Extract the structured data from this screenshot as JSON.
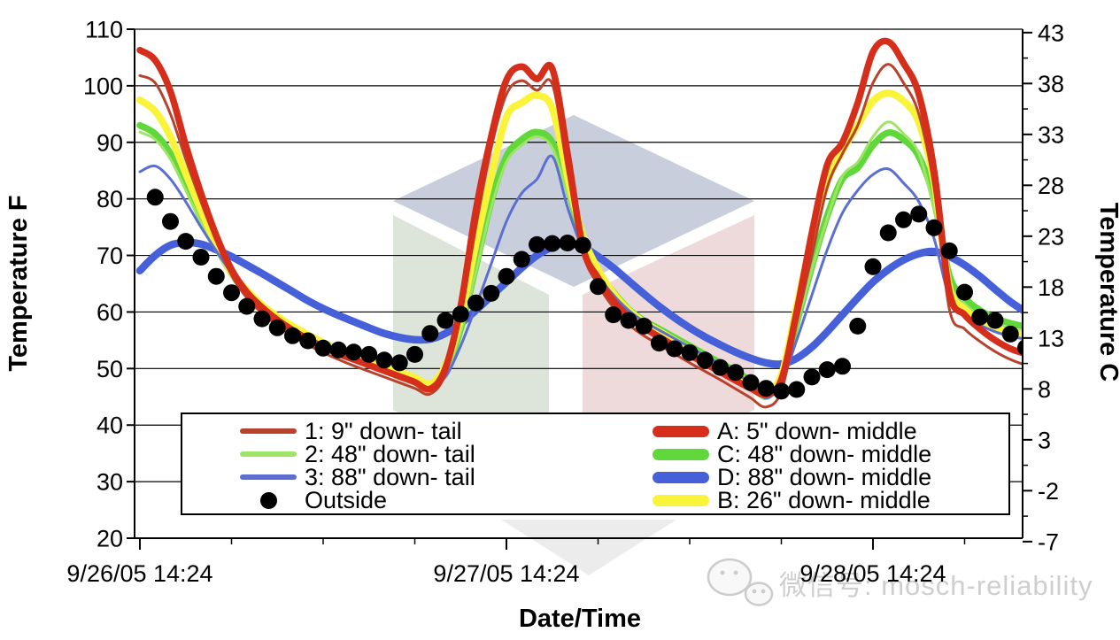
{
  "watermark": {
    "wechat_text": "微信号: mosch-reliability",
    "text_color": "#c9c9c9",
    "icon_color": "#c4c4c4",
    "cube_colors": {
      "top": "#c8cedc",
      "left": "#dde5da",
      "right": "#eedadb",
      "bottom_tip": "#ececec"
    }
  },
  "chart_data": {
    "type": "line",
    "title": "",
    "xlabel": "Date/Time",
    "ylabel_left": "Temperature F",
    "ylabel_right": "Temperature C",
    "ylim_f": [
      20,
      110
    ],
    "ylim_c": [
      -7,
      43
    ],
    "grid": "horizontal",
    "legend_position": "bottom-inside",
    "y_ticks_f": [
      110,
      100,
      90,
      80,
      70,
      60,
      50,
      40,
      30,
      20
    ],
    "y_ticks_c": [
      43,
      38,
      33,
      28,
      23,
      18,
      13,
      8,
      3,
      -2,
      -7
    ],
    "x_ticks": [
      {
        "hour": 0,
        "label": "9/26/05 14:24"
      },
      {
        "hour": 24,
        "label": "9/27/05 14:24"
      },
      {
        "hour": 48,
        "label": "9/28/05 14:24"
      }
    ],
    "x_minor_hours": [
      6,
      12,
      18,
      30,
      36,
      42,
      54
    ],
    "x_unit": "hours after 9/26/05 14:24, 1-hour sampling",
    "series": [
      {
        "id": "D",
        "label": "D: 88\" down- middle",
        "color": "#4560d8",
        "width": 8.5,
        "style": "line",
        "values": [
          67.3,
          70,
          71.8,
          72.3,
          72,
          71,
          69.8,
          68.3,
          66.8,
          65.2,
          63.6,
          62,
          60.6,
          59.4,
          58.3,
          57.2,
          56.2,
          55.5,
          55.1,
          55.2,
          56.2,
          58,
          60.3,
          62.8,
          65.3,
          67.8,
          70,
          71.5,
          72.2,
          71.5,
          69.8,
          67.8,
          65.5,
          63.2,
          61,
          59,
          57.2,
          55.6,
          54.2,
          52.9,
          51.8,
          51,
          50.8,
          51.8,
          53.8,
          56.5,
          59.5,
          62.5,
          65.3,
          67.5,
          69.2,
          70.3,
          70.7,
          69.8,
          68.3,
          66.3,
          64,
          61.8,
          60
        ]
      },
      {
        "id": "C",
        "label": "C: 48\" down- middle",
        "color": "#60d83c",
        "width": 7.5,
        "style": "line",
        "values": [
          93,
          91.5,
          88,
          82.5,
          76.5,
          71.5,
          66.8,
          63.2,
          60.6,
          58.7,
          57,
          55.5,
          54.1,
          53,
          52,
          51,
          50,
          49,
          48,
          47,
          49.5,
          57,
          68,
          79.5,
          87.5,
          90.5,
          91.8,
          90,
          82,
          72.5,
          67,
          63.5,
          60.5,
          58.5,
          57,
          55.5,
          54,
          52.5,
          51,
          49.5,
          47.8,
          45.9,
          48.5,
          58,
          68,
          77,
          83.5,
          85.5,
          89.5,
          91.7,
          90.5,
          87.5,
          80,
          66.5,
          62.5,
          60.3,
          58.9,
          58,
          57.4
        ]
      },
      {
        "id": "2",
        "label": "2: 48\" down- tail",
        "color": "#9ee466",
        "width": 3,
        "style": "line",
        "values": [
          91.8,
          90.5,
          87,
          81.5,
          75.8,
          70.8,
          66.2,
          62.7,
          60.1,
          58.2,
          56.5,
          55,
          53.7,
          52.6,
          51.6,
          50.6,
          49.6,
          48.6,
          47.6,
          46.5,
          49,
          56.5,
          67,
          78.5,
          86.5,
          89.5,
          91,
          89,
          81,
          72,
          66.3,
          62.8,
          59.8,
          57.8,
          56.3,
          54.8,
          53.3,
          51.8,
          50.3,
          48.8,
          46.8,
          44.6,
          47.8,
          57.5,
          67.5,
          76.5,
          84,
          86.5,
          91,
          93.6,
          91.5,
          88,
          78,
          65,
          61.5,
          59.3,
          58,
          57.1,
          56.5
        ]
      },
      {
        "id": "B",
        "label": "B: 26\" down- middle",
        "color": "#f9f43a",
        "width": 8,
        "style": "line",
        "values": [
          97.5,
          95.5,
          91,
          84.5,
          78,
          72,
          67,
          63.8,
          61.2,
          59.2,
          57.5,
          56,
          54.6,
          53.4,
          52.4,
          51.4,
          50.4,
          49.4,
          48.4,
          47.3,
          50.5,
          59,
          72,
          84,
          94.5,
          97,
          98.3,
          96,
          84,
          73.5,
          67.5,
          63.3,
          60.3,
          58.2,
          56.6,
          55,
          53.4,
          51.9,
          50.4,
          48.9,
          47.4,
          46.2,
          48.8,
          61,
          73,
          83,
          88.5,
          93,
          97.3,
          98.7,
          97.3,
          93.5,
          83,
          64.5,
          60.5,
          58.5,
          57.2,
          56.4,
          55.9
        ]
      },
      {
        "id": "3",
        "label": "3: 88\" down- tail",
        "color": "#5b6fd2",
        "width": 3,
        "style": "line",
        "values": [
          84.8,
          85.8,
          83.5,
          79.5,
          75,
          70.8,
          66.8,
          63.2,
          60.3,
          58.2,
          56.6,
          55.1,
          53.8,
          52.7,
          51.7,
          50.7,
          49.7,
          48.7,
          47.7,
          46.7,
          48.5,
          54,
          61,
          68.5,
          76,
          81,
          83.5,
          87.5,
          78.5,
          71,
          66.5,
          63,
          60.3,
          58.3,
          56.8,
          55.3,
          53.8,
          52.3,
          50.8,
          49.3,
          47.3,
          44.8,
          47.5,
          55,
          63,
          71,
          77.5,
          81.5,
          84.3,
          85.3,
          82.8,
          79.5,
          73,
          62.5,
          59.5,
          57.7,
          56.5,
          55.7,
          55.2
        ]
      },
      {
        "id": "1",
        "label": "1: 9\" down- tail",
        "color": "#b7432d",
        "width": 3,
        "style": "line",
        "values": [
          101.8,
          100.5,
          95,
          87,
          79.5,
          72.5,
          66.5,
          62.5,
          59.8,
          57.6,
          55.8,
          54.2,
          52.8,
          51.6,
          50.5,
          49.5,
          48.5,
          47.5,
          46.5,
          45.5,
          49,
          59.5,
          75,
          89,
          98.5,
          100.9,
          99.2,
          100.3,
          85,
          70.5,
          64.8,
          60.8,
          57.8,
          55.8,
          54.2,
          52.6,
          51,
          49.5,
          48,
          46.4,
          44.8,
          43.2,
          46,
          58,
          70,
          82,
          88,
          93,
          100.5,
          103.8,
          100.5,
          95,
          82,
          60.5,
          57,
          54.8,
          53,
          51.6,
          50.6
        ]
      },
      {
        "id": "A",
        "label": "A: 5\" down- middle",
        "color": "#d52f1c",
        "width": 7.5,
        "style": "line",
        "values": [
          106.3,
          104.5,
          99,
          89.5,
          81,
          73.5,
          67.5,
          63.5,
          60.8,
          58.6,
          56.8,
          55.2,
          53.8,
          52.6,
          51.6,
          50.6,
          49.6,
          48.6,
          47.6,
          46.4,
          50,
          61,
          78,
          91,
          101,
          103.4,
          101.2,
          103,
          88,
          71.5,
          66,
          62,
          59.2,
          57.2,
          55.6,
          54,
          52.4,
          50.9,
          49.4,
          47.9,
          46.5,
          45.4,
          48,
          60,
          74,
          86,
          90,
          97,
          106,
          107.8,
          104,
          98.5,
          85,
          63.5,
          59.5,
          57,
          55,
          53.5,
          52.6
        ]
      },
      {
        "id": "Outside",
        "label": "Outside",
        "color": "#000000",
        "width": 0,
        "style": "dots",
        "radius": 9.5,
        "values": [
          null,
          80.3,
          76,
          72.5,
          69.7,
          66.3,
          63.4,
          61,
          58.8,
          57.2,
          55.8,
          54.9,
          53.6,
          53.3,
          52.9,
          52.5,
          51.5,
          51,
          52.5,
          56.2,
          58.5,
          59.6,
          61.6,
          63.3,
          66.3,
          69.3,
          71.9,
          72.1,
          72.2,
          71.8,
          64.5,
          59.5,
          58.5,
          57.5,
          54.5,
          53.5,
          52.8,
          51.5,
          50.2,
          49.3,
          47.5,
          46.5,
          46,
          46.3,
          48.5,
          49.8,
          50.4,
          57.5,
          68,
          74,
          76.3,
          77.3,
          74.9,
          70.8,
          63.5,
          59.1,
          58.5,
          56.1,
          53.7
        ]
      }
    ],
    "legend": {
      "left": [
        "1",
        "2",
        "3",
        "Outside"
      ],
      "right": [
        "A",
        "C",
        "D",
        "B"
      ]
    }
  }
}
